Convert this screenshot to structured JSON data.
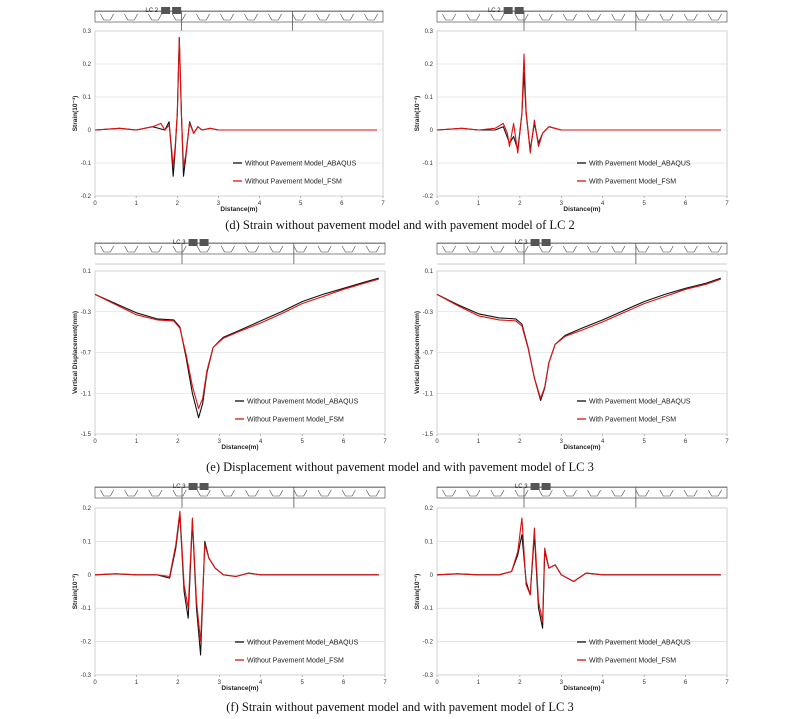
{
  "chart_data": [
    {
      "type": "line",
      "load_case_label": "LC 2",
      "lc_x": 1.85,
      "xlabel": "Distance(m)",
      "ylabel": "Strain(10⁻³)",
      "xlim": [
        0,
        7
      ],
      "ylim": [
        -0.2,
        0.3
      ],
      "xticks": [
        "0",
        "1",
        "2",
        "3",
        "4",
        "5",
        "6",
        "7"
      ],
      "yticks": [
        "-0.2",
        "-0.1",
        "0",
        "0.1",
        "0.2",
        "0.3"
      ],
      "ytick_values": [
        -0.2,
        -0.1,
        0,
        0.1,
        0.2,
        0.3
      ],
      "grid": "horizontal",
      "legend_position": "bottom-right",
      "series": [
        {
          "name": "Without Pavement Model_ABAQUS",
          "color": "#111111",
          "x": [
            0,
            0.6,
            1.0,
            1.4,
            1.7,
            1.8,
            1.85,
            1.9,
            1.95,
            2.0,
            2.05,
            2.1,
            2.15,
            2.2,
            2.3,
            2.4,
            2.5,
            2.6,
            2.8,
            3.0,
            3.5,
            4,
            5,
            6,
            6.85
          ],
          "y": [
            0,
            0.005,
            0.0,
            0.01,
            0.0,
            0.025,
            -0.05,
            -0.14,
            -0.06,
            0.05,
            0.28,
            0.05,
            -0.14,
            -0.09,
            0.025,
            -0.01,
            0.01,
            0.0,
            0.005,
            0.0,
            0.0,
            0.0,
            0.0,
            0.0,
            0.0
          ]
        },
        {
          "name": "Without Pavement Model_FSM",
          "color": "#dd1111",
          "x": [
            0,
            0.6,
            1.0,
            1.4,
            1.6,
            1.7,
            1.8,
            1.85,
            1.9,
            1.95,
            2.0,
            2.05,
            2.1,
            2.15,
            2.2,
            2.3,
            2.4,
            2.5,
            2.6,
            2.8,
            3.0,
            3.5,
            4,
            5,
            6,
            6.85
          ],
          "y": [
            0,
            0.005,
            0.0,
            0.01,
            0.02,
            0.0,
            0.015,
            -0.04,
            -0.11,
            -0.05,
            0.05,
            0.28,
            0.05,
            -0.11,
            -0.08,
            0.02,
            -0.01,
            0.01,
            0.0,
            0.005,
            0.0,
            0.0,
            0.0,
            0.0,
            0.0,
            0.0
          ]
        }
      ]
    },
    {
      "type": "line",
      "load_case_label": "LC 2",
      "lc_x": 1.85,
      "xlabel": "Distance(m)",
      "ylabel": "Strain(10⁻³)",
      "xlim": [
        0,
        7
      ],
      "ylim": [
        -0.2,
        0.3
      ],
      "xticks": [
        "0",
        "1",
        "2",
        "3",
        "4",
        "5",
        "6",
        "7"
      ],
      "yticks": [
        "-0.2",
        "-0.1",
        "0",
        "0.1",
        "0.2",
        "0.3"
      ],
      "ytick_values": [
        -0.2,
        -0.1,
        0,
        0.1,
        0.2,
        0.3
      ],
      "grid": "horizontal",
      "legend_position": "bottom-right",
      "series": [
        {
          "name": "With Pavement Model_ABAQUS",
          "color": "#111111",
          "x": [
            0,
            0.6,
            1.0,
            1.4,
            1.6,
            1.75,
            1.85,
            1.95,
            2.05,
            2.1,
            2.15,
            2.25,
            2.35,
            2.45,
            2.55,
            2.7,
            3.0,
            3.5,
            4,
            5,
            6,
            6.85
          ],
          "y": [
            0,
            0.005,
            0.0,
            0.0,
            0.01,
            -0.04,
            -0.02,
            -0.06,
            0.05,
            0.175,
            0.05,
            -0.06,
            0.02,
            -0.04,
            -0.01,
            0.01,
            0.0,
            0.0,
            0.0,
            0.0,
            0.0,
            0.0
          ]
        },
        {
          "name": "With Pavement Model_FSM",
          "color": "#dd1111",
          "x": [
            0,
            0.6,
            1.0,
            1.4,
            1.6,
            1.7,
            1.75,
            1.85,
            1.95,
            2.05,
            2.1,
            2.15,
            2.25,
            2.35,
            2.45,
            2.55,
            2.7,
            3.0,
            3.5,
            4,
            5,
            6,
            6.85
          ],
          "y": [
            0,
            0.005,
            0.0,
            0.005,
            0.02,
            -0.01,
            -0.05,
            0.02,
            -0.07,
            0.05,
            0.23,
            0.06,
            -0.07,
            0.03,
            -0.05,
            -0.01,
            0.01,
            0.0,
            0.0,
            0.0,
            0.0,
            0.0,
            0.0
          ]
        }
      ]
    },
    {
      "type": "line",
      "load_case_label": "LC 3",
      "lc_x": 2.5,
      "xlabel": "Distance(m)",
      "ylabel": "Vertical Displacement(mm)",
      "xlim": [
        0,
        7
      ],
      "ylim": [
        -1.5,
        0.1
      ],
      "xticks": [
        "0",
        "1",
        "2",
        "3",
        "4",
        "5",
        "6",
        "7"
      ],
      "yticks": [
        "-1.5",
        "-1.1",
        "-0.7",
        "-0.3",
        "0.1"
      ],
      "ytick_values": [
        -1.5,
        -1.1,
        -0.7,
        -0.3,
        0.1
      ],
      "grid": "horizontal",
      "legend_position": "bottom-right",
      "series": [
        {
          "name": "Without Pavement Model_ABAQUS",
          "color": "#111111",
          "x": [
            0,
            0.5,
            1.0,
            1.5,
            1.9,
            2.05,
            2.2,
            2.35,
            2.5,
            2.6,
            2.7,
            2.85,
            3.1,
            3.5,
            4,
            4.5,
            5,
            5.5,
            6,
            6.5,
            6.85
          ],
          "y": [
            -0.13,
            -0.22,
            -0.31,
            -0.37,
            -0.38,
            -0.45,
            -0.75,
            -1.1,
            -1.34,
            -1.2,
            -0.9,
            -0.65,
            -0.55,
            -0.48,
            -0.39,
            -0.3,
            -0.2,
            -0.13,
            -0.07,
            -0.01,
            0.03
          ]
        },
        {
          "name": "Without Pavement Model_FSM",
          "color": "#dd1111",
          "x": [
            0,
            0.5,
            1.0,
            1.5,
            1.9,
            2.05,
            2.2,
            2.35,
            2.5,
            2.6,
            2.7,
            2.85,
            3.1,
            3.5,
            4,
            4.5,
            5,
            5.5,
            6,
            6.5,
            6.85
          ],
          "y": [
            -0.13,
            -0.23,
            -0.33,
            -0.38,
            -0.39,
            -0.46,
            -0.72,
            -1.03,
            -1.25,
            -1.15,
            -0.88,
            -0.65,
            -0.56,
            -0.49,
            -0.41,
            -0.32,
            -0.22,
            -0.15,
            -0.08,
            -0.02,
            0.02
          ]
        }
      ]
    },
    {
      "type": "line",
      "load_case_label": "LC 3",
      "lc_x": 2.5,
      "xlabel": "Distance(m)",
      "ylabel": "Vertical Displacement(mm)",
      "xlim": [
        0,
        7
      ],
      "ylim": [
        -1.5,
        0.1
      ],
      "xticks": [
        "0",
        "1",
        "2",
        "3",
        "4",
        "5",
        "6",
        "7"
      ],
      "yticks": [
        "-1.5",
        "-1.1",
        "-0.7",
        "-0.3",
        "0.1"
      ],
      "ytick_values": [
        -1.5,
        -1.1,
        -0.7,
        -0.3,
        0.1
      ],
      "grid": "horizontal",
      "legend_position": "bottom-right",
      "series": [
        {
          "name": "With Pavement Model_ABAQUS",
          "color": "#111111",
          "x": [
            0,
            0.5,
            1.0,
            1.5,
            1.9,
            2.05,
            2.2,
            2.35,
            2.5,
            2.6,
            2.7,
            2.85,
            3.1,
            3.5,
            4,
            4.5,
            5,
            5.5,
            6,
            6.5,
            6.85
          ],
          "y": [
            -0.13,
            -0.23,
            -0.32,
            -0.36,
            -0.37,
            -0.42,
            -0.65,
            -0.95,
            -1.17,
            -1.05,
            -0.8,
            -0.62,
            -0.53,
            -0.46,
            -0.38,
            -0.29,
            -0.2,
            -0.13,
            -0.07,
            -0.02,
            0.03
          ]
        },
        {
          "name": "With Pavement Model_FSM",
          "color": "#dd1111",
          "x": [
            0,
            0.5,
            1.0,
            1.5,
            1.9,
            2.05,
            2.2,
            2.35,
            2.5,
            2.6,
            2.7,
            2.85,
            3.1,
            3.5,
            4,
            4.5,
            5,
            5.5,
            6,
            6.5,
            6.85
          ],
          "y": [
            -0.13,
            -0.24,
            -0.34,
            -0.38,
            -0.39,
            -0.44,
            -0.66,
            -0.95,
            -1.15,
            -1.04,
            -0.8,
            -0.62,
            -0.54,
            -0.48,
            -0.4,
            -0.31,
            -0.22,
            -0.15,
            -0.08,
            -0.03,
            0.02
          ]
        }
      ]
    },
    {
      "type": "line",
      "load_case_label": "LC 3",
      "lc_x": 2.5,
      "xlabel": "Distance(m)",
      "ylabel": "Strain(10⁻³)",
      "xlim": [
        0,
        7
      ],
      "ylim": [
        -0.3,
        0.2
      ],
      "xticks": [
        "0",
        "1",
        "2",
        "3",
        "4",
        "5",
        "6",
        "7"
      ],
      "yticks": [
        "-0.3",
        "-0.2",
        "-0.1",
        "0",
        "0.1",
        "0.2"
      ],
      "ytick_values": [
        -0.3,
        -0.2,
        -0.1,
        0,
        0.1,
        0.2
      ],
      "grid": "horizontal",
      "legend_position": "bottom-right",
      "series": [
        {
          "name": "Without Pavement Model_ABAQUS",
          "color": "#111111",
          "x": [
            0,
            0.5,
            1.0,
            1.5,
            1.8,
            1.95,
            2.05,
            2.15,
            2.25,
            2.35,
            2.45,
            2.55,
            2.65,
            2.75,
            2.9,
            3.1,
            3.4,
            3.7,
            4,
            4.5,
            5,
            6,
            6.85
          ],
          "y": [
            0,
            0.003,
            0.0,
            0.0,
            -0.01,
            0.08,
            0.18,
            -0.05,
            -0.13,
            0.16,
            -0.1,
            -0.24,
            0.1,
            0.05,
            0.02,
            0.0,
            -0.005,
            0.005,
            0.0,
            0.0,
            0.0,
            0.0,
            0.0
          ]
        },
        {
          "name": "Without Pavement Model_FSM",
          "color": "#dd1111",
          "x": [
            0,
            0.5,
            1.0,
            1.5,
            1.8,
            1.95,
            2.05,
            2.15,
            2.25,
            2.35,
            2.45,
            2.55,
            2.65,
            2.75,
            2.9,
            3.1,
            3.4,
            3.7,
            4,
            4.5,
            5,
            6,
            6.85
          ],
          "y": [
            0,
            0.003,
            0.0,
            0.0,
            -0.005,
            0.09,
            0.19,
            -0.03,
            -0.1,
            0.17,
            -0.08,
            -0.2,
            0.09,
            0.05,
            0.02,
            0.0,
            -0.005,
            0.005,
            0.0,
            0.0,
            0.0,
            0.0,
            0.0
          ]
        }
      ]
    },
    {
      "type": "line",
      "load_case_label": "LC 3",
      "lc_x": 2.5,
      "xlabel": "Distance(m)",
      "ylabel": "Strain(10⁻³)",
      "xlim": [
        0,
        7
      ],
      "ylim": [
        -0.3,
        0.2
      ],
      "xticks": [
        "0",
        "1",
        "2",
        "3",
        "4",
        "5",
        "6",
        "7"
      ],
      "yticks": [
        "-0.3",
        "-0.2",
        "-0.1",
        "0",
        "0.1",
        "0.2"
      ],
      "ytick_values": [
        -0.3,
        -0.2,
        -0.1,
        0,
        0.1,
        0.2
      ],
      "grid": "horizontal",
      "legend_position": "bottom-right",
      "series": [
        {
          "name": "With Pavement Model_ABAQUS",
          "color": "#111111",
          "x": [
            0,
            0.5,
            1.0,
            1.5,
            1.8,
            1.95,
            2.05,
            2.15,
            2.25,
            2.35,
            2.45,
            2.55,
            2.6,
            2.7,
            2.85,
            3.0,
            3.3,
            3.6,
            4,
            4.5,
            5,
            6,
            6.85
          ],
          "y": [
            0,
            0.003,
            0.0,
            0.0,
            0.01,
            0.06,
            0.12,
            -0.02,
            -0.06,
            0.12,
            -0.1,
            -0.16,
            0.07,
            0.02,
            0.03,
            0.0,
            -0.02,
            0.005,
            0.0,
            0.0,
            0.0,
            0.0,
            0.0
          ]
        },
        {
          "name": "With Pavement Model_FSM",
          "color": "#dd1111",
          "x": [
            0,
            0.5,
            1.0,
            1.5,
            1.8,
            1.95,
            2.05,
            2.15,
            2.25,
            2.35,
            2.45,
            2.55,
            2.6,
            2.7,
            2.85,
            3.0,
            3.3,
            3.6,
            4,
            4.5,
            5,
            6,
            6.85
          ],
          "y": [
            0,
            0.003,
            0.0,
            0.0,
            0.01,
            0.07,
            0.17,
            -0.03,
            -0.06,
            0.14,
            -0.08,
            -0.14,
            0.08,
            0.02,
            0.03,
            0.0,
            -0.02,
            0.005,
            0.0,
            0.0,
            0.0,
            0.0,
            0.0
          ]
        }
      ]
    }
  ],
  "captions": [
    "(d) Strain without pavement model and with pavement model of LC 2",
    "(e) Displacement without pavement model and with pavement model of LC 3",
    "(f) Strain without pavement model and with pavement model of LC 3"
  ]
}
